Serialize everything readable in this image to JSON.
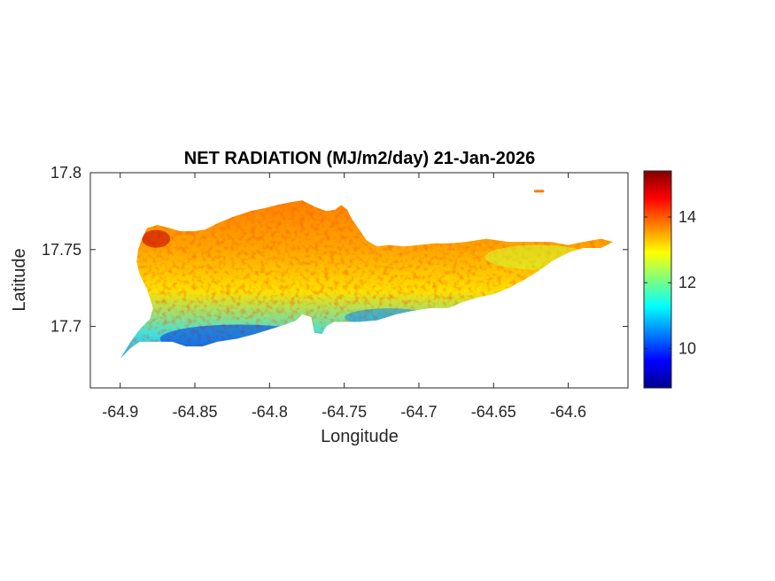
{
  "chart_data": {
    "type": "heatmap",
    "title": "NET RADIATION (MJ/m2/day) 21-Jan-2026",
    "xlabel": "Longitude",
    "ylabel": "Latitude",
    "xlim": [
      -64.92,
      -64.56
    ],
    "ylim": [
      17.66,
      17.8
    ],
    "x_ticks": [
      -64.9,
      -64.85,
      -64.8,
      -64.75,
      -64.7,
      -64.65,
      -64.6
    ],
    "x_tick_labels": [
      "-64.9",
      "-64.85",
      "-64.8",
      "-64.75",
      "-64.7",
      "-64.65",
      "-64.6"
    ],
    "y_ticks": [
      17.7,
      17.75,
      17.8
    ],
    "y_tick_labels": [
      "17.7",
      "17.75",
      "17.8"
    ],
    "colorbar": {
      "colormap": "jet",
      "range": [
        8.8,
        15.4
      ],
      "ticks": [
        10,
        12,
        14
      ],
      "tick_labels": [
        "10",
        "12",
        "14"
      ]
    },
    "region_outline": [
      [
        -64.9,
        17.679
      ],
      [
        -64.893,
        17.686
      ],
      [
        -64.887,
        17.69
      ],
      [
        -64.875,
        17.69
      ],
      [
        -64.865,
        17.69
      ],
      [
        -64.856,
        17.687
      ],
      [
        -64.845,
        17.687
      ],
      [
        -64.835,
        17.69
      ],
      [
        -64.822,
        17.692
      ],
      [
        -64.81,
        17.695
      ],
      [
        -64.8,
        17.698
      ],
      [
        -64.79,
        17.701
      ],
      [
        -64.782,
        17.704
      ],
      [
        -64.778,
        17.708
      ],
      [
        -64.772,
        17.706
      ],
      [
        -64.77,
        17.696
      ],
      [
        -64.765,
        17.695
      ],
      [
        -64.762,
        17.7
      ],
      [
        -64.757,
        17.703
      ],
      [
        -64.75,
        17.703
      ],
      [
        -64.74,
        17.703
      ],
      [
        -64.728,
        17.704
      ],
      [
        -64.715,
        17.708
      ],
      [
        -64.705,
        17.71
      ],
      [
        -64.692,
        17.712
      ],
      [
        -64.68,
        17.712
      ],
      [
        -64.67,
        17.716
      ],
      [
        -64.66,
        17.719
      ],
      [
        -64.65,
        17.721
      ],
      [
        -64.64,
        17.725
      ],
      [
        -64.63,
        17.73
      ],
      [
        -64.62,
        17.736
      ],
      [
        -64.61,
        17.743
      ],
      [
        -64.6,
        17.748
      ],
      [
        -64.59,
        17.751
      ],
      [
        -64.578,
        17.751
      ],
      [
        -64.57,
        17.755
      ],
      [
        -64.578,
        17.757
      ],
      [
        -64.59,
        17.755
      ],
      [
        -64.6,
        17.753
      ],
      [
        -64.612,
        17.755
      ],
      [
        -64.625,
        17.755
      ],
      [
        -64.64,
        17.755
      ],
      [
        -64.655,
        17.757
      ],
      [
        -64.668,
        17.755
      ],
      [
        -64.68,
        17.754
      ],
      [
        -64.69,
        17.754
      ],
      [
        -64.7,
        17.753
      ],
      [
        -64.71,
        17.752
      ],
      [
        -64.72,
        17.753
      ],
      [
        -64.728,
        17.752
      ],
      [
        -64.735,
        17.756
      ],
      [
        -64.74,
        17.763
      ],
      [
        -64.745,
        17.77
      ],
      [
        -64.748,
        17.776
      ],
      [
        -64.752,
        17.779
      ],
      [
        -64.756,
        17.776
      ],
      [
        -64.762,
        17.775
      ],
      [
        -64.77,
        17.778
      ],
      [
        -64.778,
        17.782
      ],
      [
        -64.785,
        17.781
      ],
      [
        -64.795,
        17.779
      ],
      [
        -64.803,
        17.777
      ],
      [
        -64.813,
        17.775
      ],
      [
        -64.825,
        17.771
      ],
      [
        -64.835,
        17.767
      ],
      [
        -64.843,
        17.763
      ],
      [
        -64.85,
        17.762
      ],
      [
        -64.86,
        17.762
      ],
      [
        -64.867,
        17.764
      ],
      [
        -64.875,
        17.766
      ],
      [
        -64.882,
        17.764
      ],
      [
        -64.885,
        17.758
      ],
      [
        -64.888,
        17.75
      ],
      [
        -64.889,
        17.742
      ],
      [
        -64.887,
        17.734
      ],
      [
        -64.882,
        17.724
      ],
      [
        -64.878,
        17.712
      ],
      [
        -64.88,
        17.705
      ],
      [
        -64.887,
        17.698
      ],
      [
        -64.893,
        17.69
      ],
      [
        -64.9,
        17.679
      ]
    ],
    "field_description_values": {
      "northern_half_mean": 13.8,
      "southern_coast_mean": 10.5,
      "eastern_tail_mean": 12.8,
      "west_cape_max": 15.3
    },
    "islet": [
      [
        -64.622,
        17.788
      ],
      [
        -64.617,
        17.788
      ]
    ]
  }
}
